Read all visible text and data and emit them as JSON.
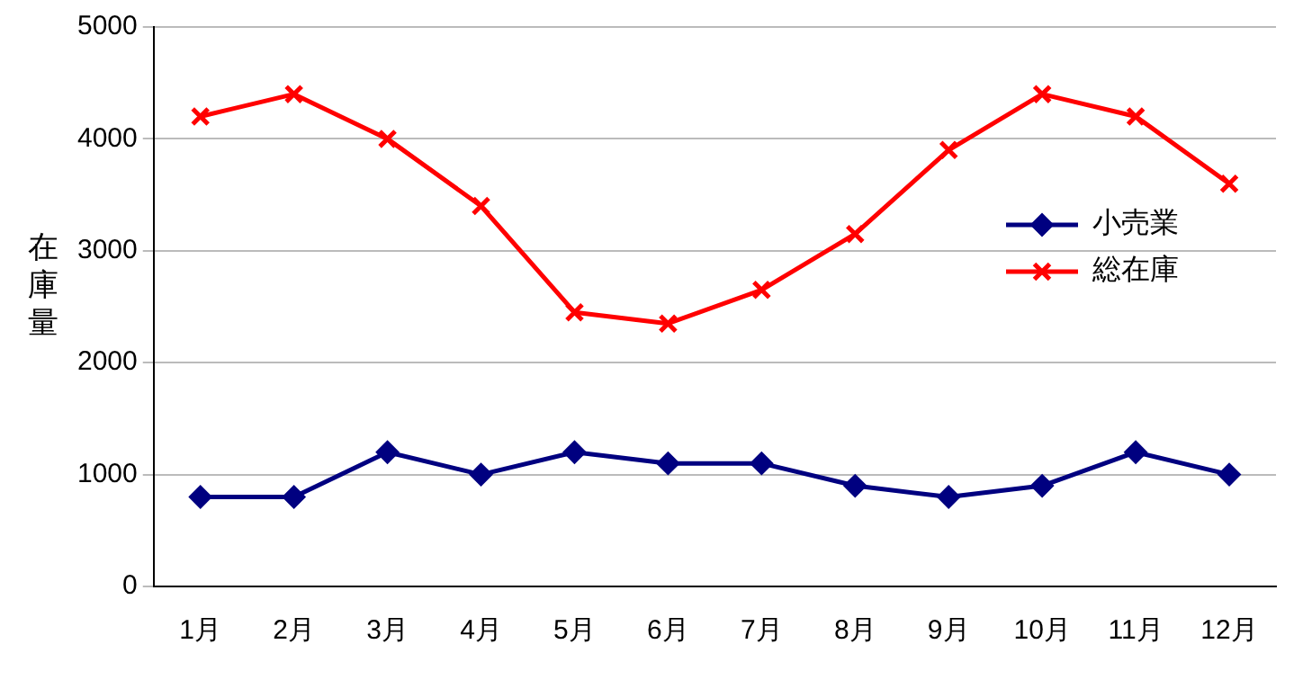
{
  "chart_data": {
    "type": "line",
    "ylabel": "在庫量",
    "categories": [
      "1月",
      "2月",
      "3月",
      "4月",
      "5月",
      "6月",
      "7月",
      "8月",
      "9月",
      "10月",
      "11月",
      "12月"
    ],
    "series": [
      {
        "name": "小売業",
        "color": "#000080",
        "marker": "diamond",
        "values": [
          800,
          800,
          1200,
          1000,
          1200,
          1100,
          1100,
          900,
          800,
          900,
          1200,
          1000
        ]
      },
      {
        "name": "総在庫",
        "color": "#ff0000",
        "marker": "cross",
        "values": [
          4200,
          4400,
          4000,
          3400,
          2450,
          2350,
          2650,
          3150,
          3900,
          4400,
          4200,
          3600
        ]
      }
    ],
    "ylim": [
      0,
      5000
    ],
    "yticks": [
      0,
      1000,
      2000,
      3000,
      4000,
      5000
    ],
    "grid": "y",
    "legend": "right",
    "line_style": "solid"
  }
}
